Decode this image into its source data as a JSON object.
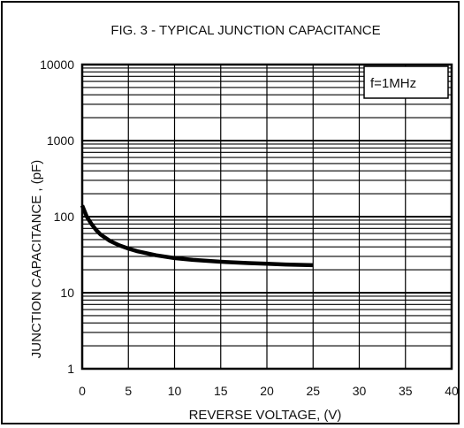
{
  "chart_data": {
    "type": "line",
    "title": "FIG. 3 - TYPICAL JUNCTION CAPACITANCE",
    "xlabel": "REVERSE VOLTAGE, (V)",
    "ylabel": "JUNCTION CAPACITANCE , (pF)",
    "x_scale": "linear",
    "y_scale": "log",
    "xlim": [
      0,
      40
    ],
    "ylim": [
      1,
      10000
    ],
    "x_ticks": [
      0,
      5,
      10,
      15,
      20,
      25,
      30,
      35,
      40
    ],
    "y_ticks": [
      1,
      10,
      100,
      1000,
      10000
    ],
    "x_tick_labels": [
      "0",
      "5",
      "10",
      "15",
      "20",
      "25",
      "30",
      "35",
      "40"
    ],
    "y_tick_labels": [
      "1",
      "10",
      "100",
      "1000",
      "10000"
    ],
    "grid": true,
    "annotation": "f=1MHz",
    "annotation_position": "top-right",
    "series": [
      {
        "x": [
          0,
          0.5,
          1,
          1.5,
          2,
          3,
          4,
          5,
          6,
          8,
          10,
          12,
          15,
          18,
          20,
          22,
          25
        ],
        "y": [
          140,
          100,
          80,
          67,
          58,
          48,
          42,
          38,
          35,
          31,
          28.5,
          27,
          25.5,
          24.5,
          24,
          23.5,
          23
        ]
      }
    ],
    "colors": {
      "line": "#000000",
      "grid": "#000000"
    }
  }
}
